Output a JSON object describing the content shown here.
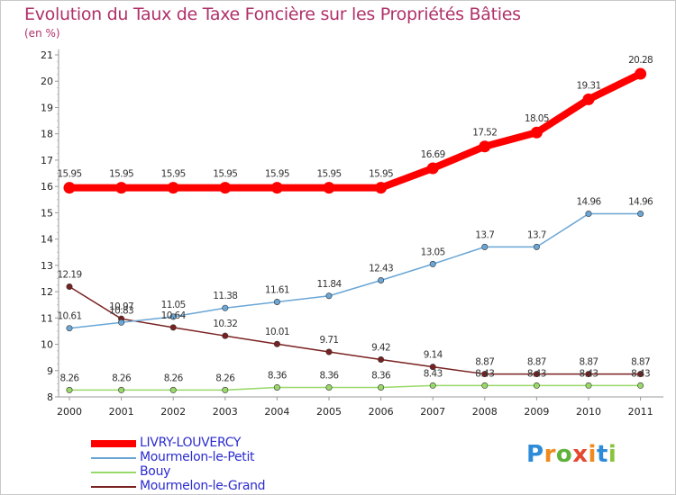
{
  "page": {
    "title": "Evolution du Taux de Taxe Foncière sur les Propriétés Bâties",
    "subtitle": "(en %)"
  },
  "logo": {
    "letters": [
      "P",
      "r",
      "o",
      "x",
      "i",
      "t",
      "i"
    ],
    "colors": [
      "#2e8bd8",
      "#f08a1c",
      "#5fb23a",
      "#e5472f",
      "#f08a1c",
      "#2e8bd8",
      "#8ac33a"
    ]
  },
  "chart_data": {
    "type": "line",
    "title": "Evolution du Taux de Taxe Foncière sur les Propriétés Bâties",
    "ylabel": "(en %)",
    "xlabel": "",
    "x": [
      "2000",
      "2001",
      "2002",
      "2003",
      "2004",
      "2005",
      "2006",
      "2007",
      "2008",
      "2009",
      "2010",
      "2011"
    ],
    "ylim": [
      8,
      21
    ],
    "yticks": [
      "8",
      "9",
      "10",
      "11",
      "12",
      "13",
      "14",
      "15",
      "16",
      "17",
      "18",
      "19",
      "20",
      "21"
    ],
    "grid": false,
    "legend_position": "bottom-left",
    "series": [
      {
        "name": "LIVRY-LOUVERCY",
        "color": "#ff0000",
        "values": [
          15.95,
          15.95,
          15.95,
          15.95,
          15.95,
          15.95,
          15.95,
          16.69,
          17.52,
          18.05,
          19.31,
          20.28
        ],
        "labels": [
          "15.95",
          "15.95",
          "15.95",
          "15.95",
          "15.95",
          "15.95",
          "15.95",
          "16.69",
          "17.52",
          "18.05",
          "19.31",
          "20.28"
        ]
      },
      {
        "name": "Mourmelon-le-Petit",
        "color": "#6aa6d6",
        "values": [
          10.61,
          10.83,
          11.05,
          11.38,
          11.61,
          11.84,
          12.43,
          13.05,
          13.7,
          13.7,
          14.96,
          14.96
        ],
        "labels": [
          "10.61",
          "10.83",
          "11.05",
          "11.38",
          "11.61",
          "11.84",
          "12.43",
          "13.05",
          "13.7",
          "13.7",
          "14.96",
          "14.96"
        ]
      },
      {
        "name": "Bouy",
        "color": "#99d96a",
        "values": [
          8.26,
          8.26,
          8.26,
          8.26,
          8.36,
          8.36,
          8.36,
          8.43,
          8.43,
          8.43,
          8.43,
          8.43
        ],
        "labels": [
          "8.26",
          "8.26",
          "8.26",
          "8.26",
          "8.36",
          "8.36",
          "8.36",
          "8.43",
          "8.43",
          "8.43",
          "8.43",
          "8.43"
        ]
      },
      {
        "name": "Mourmelon-le-Grand",
        "color": "#7a2020",
        "values": [
          12.19,
          10.97,
          10.64,
          10.32,
          10.01,
          9.71,
          9.42,
          9.14,
          8.87,
          8.87,
          8.87,
          8.87
        ],
        "labels": [
          "12.19",
          "10.97",
          "10.64",
          "10.32",
          "10.01",
          "9.71",
          "9.42",
          "9.14",
          "8.87",
          "8.87",
          "8.87",
          "8.87"
        ]
      }
    ]
  }
}
